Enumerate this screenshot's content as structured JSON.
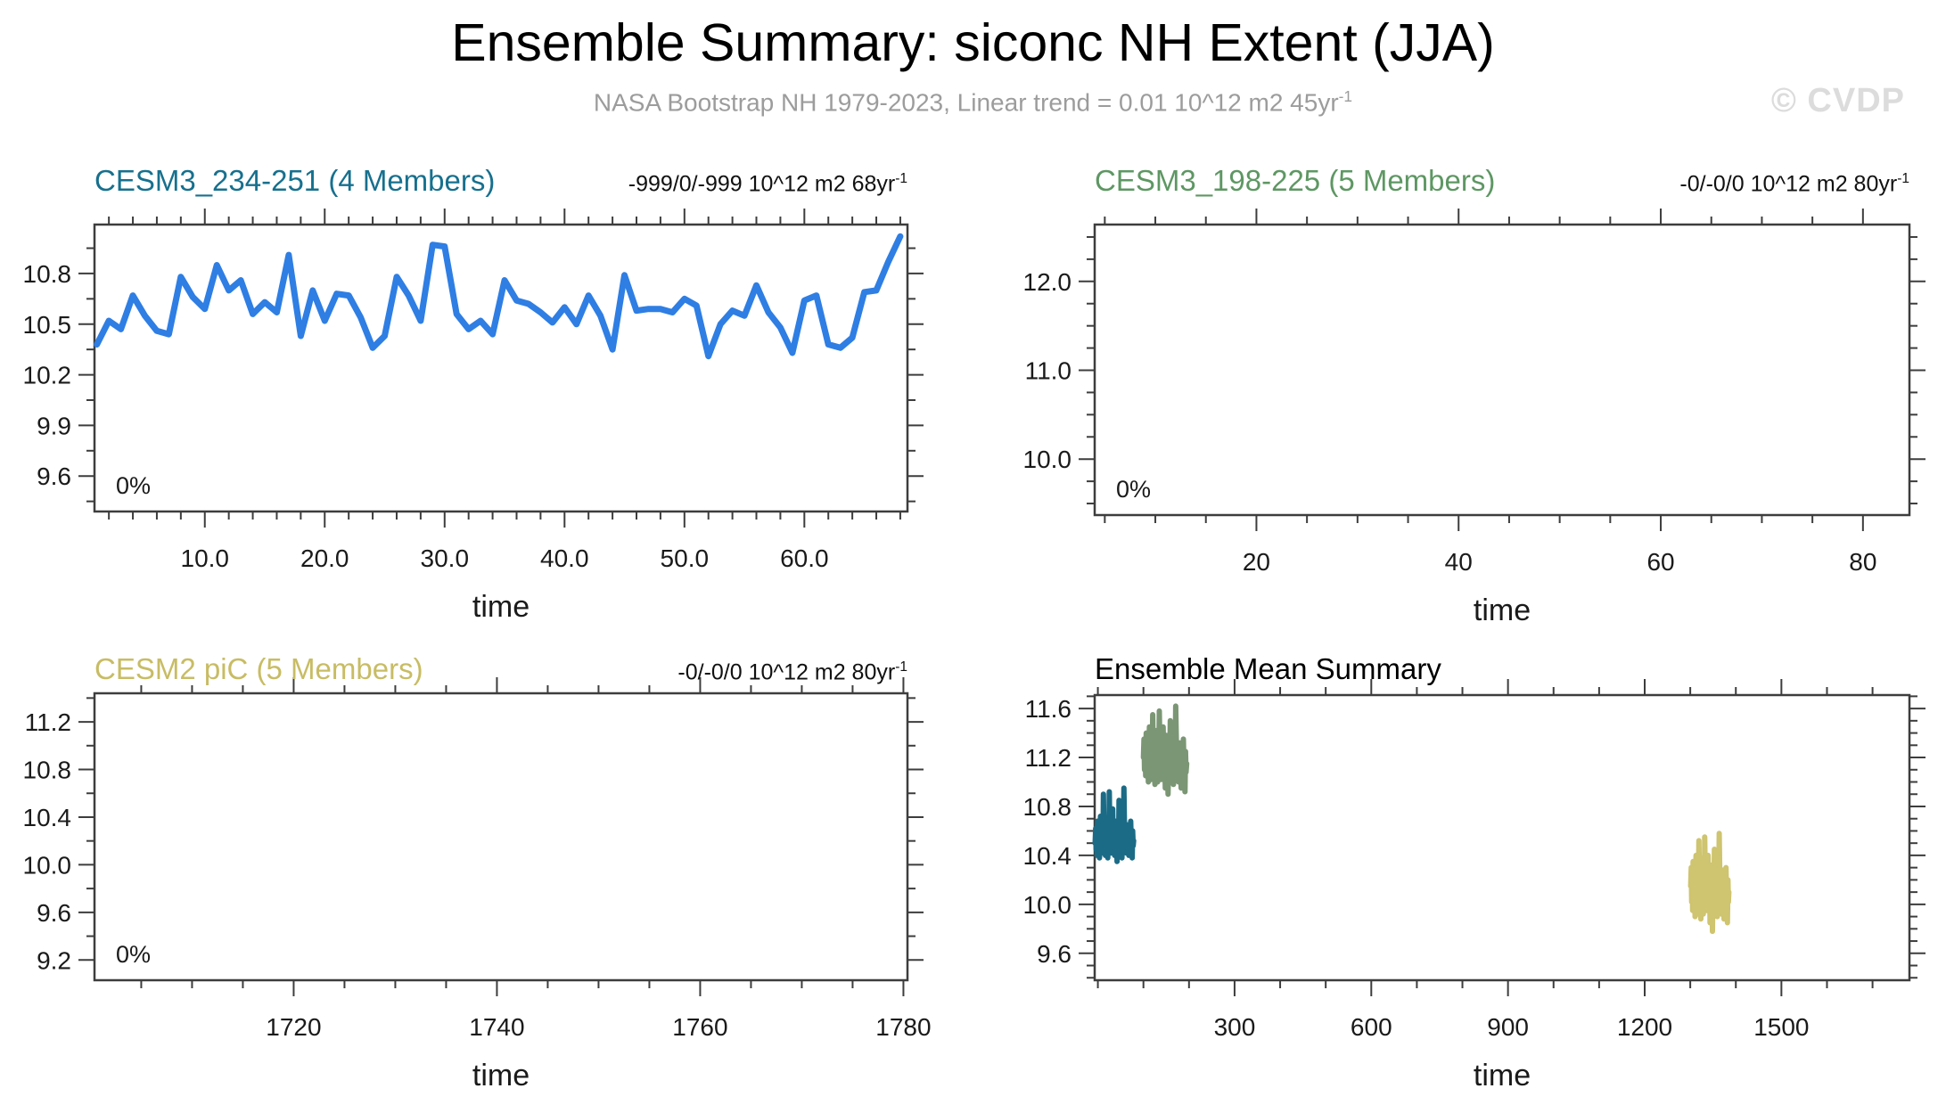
{
  "header": {
    "title": "Ensemble Summary: siconc NH Extent (JJA)",
    "subtitle": "NASA Bootstrap NH 1979-2023, Linear trend = 0.01 10^12 m2 45yr",
    "subtitle_sup": "-1",
    "watermark": "© CVDP"
  },
  "colors": {
    "frame": "#3d3d3d",
    "tick_text": "#1a1a1a",
    "subtitle_gray": "#9c9c9c",
    "watermark_gray": "#dcdcdc",
    "blue_line": "#2e7ee4",
    "teal": "#17708e",
    "green": "#5e9763",
    "olive": "#c8bc64"
  },
  "chart_data": [
    {
      "id": "cesm3-234-251",
      "type": "line",
      "title": "CESM3_234-251 (4 Members)",
      "title_color": "#17708e",
      "trend_label": "-999/0/-999 10^12 m2 68yr",
      "trend_sup": "-1",
      "corner_label": "0%",
      "xlabel": "time",
      "xlim": [
        0.8,
        68.6
      ],
      "ylim": [
        9.39,
        11.09
      ],
      "xticks": {
        "values": [
          10,
          20,
          30,
          40,
          50,
          60
        ],
        "labels": [
          "10.0",
          "20.0",
          "30.0",
          "40.0",
          "50.0",
          "60.0"
        ],
        "minor_step": 2
      },
      "yticks": {
        "values": [
          9.6,
          9.9,
          10.2,
          10.5,
          10.8
        ],
        "labels": [
          "9.6",
          "9.9",
          "10.2",
          "10.5",
          "10.8"
        ],
        "minor_step": 0.15
      },
      "series": [
        {
          "name": "ensemble-member-mean",
          "color": "#2e7ee4",
          "stroke_width": 7,
          "x0": 1,
          "dx": 1,
          "y": [
            10.38,
            10.52,
            10.47,
            10.67,
            10.55,
            10.46,
            10.44,
            10.78,
            10.66,
            10.59,
            10.85,
            10.7,
            10.76,
            10.56,
            10.63,
            10.57,
            10.91,
            10.43,
            10.7,
            10.52,
            10.68,
            10.67,
            10.54,
            10.36,
            10.43,
            10.78,
            10.67,
            10.52,
            10.97,
            10.96,
            10.56,
            10.47,
            10.52,
            10.44,
            10.76,
            10.64,
            10.62,
            10.57,
            10.51,
            10.6,
            10.5,
            10.67,
            10.55,
            10.35,
            10.79,
            10.58,
            10.59,
            10.59,
            10.57,
            10.65,
            10.61,
            10.31,
            10.5,
            10.58,
            10.55,
            10.73,
            10.57,
            10.48,
            10.33,
            10.64,
            10.67,
            10.38,
            10.36,
            10.42,
            10.69,
            10.7,
            10.87,
            11.02
          ]
        }
      ]
    },
    {
      "id": "cesm3-198-225",
      "type": "line",
      "title": "CESM3_198-225 (5 Members)",
      "title_color": "#5e9763",
      "trend_label": "-0/-0/0 10^12 m2 80yr",
      "trend_sup": "-1",
      "corner_label": "0%",
      "xlabel": "time",
      "xlim": [
        4,
        84.6
      ],
      "ylim": [
        9.37,
        12.64
      ],
      "xticks": {
        "values": [
          20,
          40,
          60,
          80
        ],
        "labels": [
          "20",
          "40",
          "60",
          "80"
        ],
        "minor_step": 5
      },
      "yticks": {
        "values": [
          10,
          11,
          12
        ],
        "labels": [
          "10.0",
          "11.0",
          "12.0"
        ],
        "minor_step": 0.25
      },
      "series": []
    },
    {
      "id": "cesm2-pic",
      "type": "line",
      "title": "CESM2 piC (5 Members)",
      "title_color": "#c8bc64",
      "trend_label": "-0/-0/0 10^12 m2 80yr",
      "trend_sup": "-1",
      "corner_label": "0%",
      "xlabel": "time",
      "xlim": [
        1700.4,
        1780.4
      ],
      "ylim": [
        9.03,
        11.44
      ],
      "xticks": {
        "values": [
          1720,
          1740,
          1760,
          1780
        ],
        "labels": [
          "1720",
          "1740",
          "1760",
          "1780"
        ],
        "minor_step": 5
      },
      "yticks": {
        "values": [
          9.2,
          9.6,
          10.0,
          10.4,
          10.8,
          11.2
        ],
        "labels": [
          "9.2",
          "9.6",
          "10.0",
          "10.4",
          "10.8",
          "11.2"
        ],
        "minor_step": 0.2
      },
      "series": []
    },
    {
      "id": "ensemble-mean-summary",
      "type": "line",
      "title": "Ensemble Mean Summary",
      "title_color": "#000000",
      "xlabel": "time",
      "xlim": [
        -7,
        1781
      ],
      "ylim": [
        9.38,
        11.71
      ],
      "xticks": {
        "values": [
          300,
          600,
          900,
          1200,
          1500
        ],
        "labels": [
          "300",
          "600",
          "900",
          "1200",
          "1500"
        ],
        "minor_step": 100
      },
      "yticks": {
        "values": [
          9.6,
          10.0,
          10.4,
          10.8,
          11.2,
          11.6
        ],
        "labels": [
          "9.6",
          "10.0",
          "10.4",
          "10.8",
          "11.2",
          "11.6"
        ],
        "minor_step": 0.1
      },
      "series": [
        {
          "name": "cesm3-234-251-mean",
          "color": "#1b6b86",
          "stroke_width": 6,
          "x0": -6,
          "dx": 1.07,
          "y": [
            10.5,
            10.62,
            10.45,
            10.55,
            10.4,
            10.68,
            10.52,
            10.45,
            10.6,
            10.38,
            10.55,
            10.72,
            10.48,
            10.58,
            10.42,
            10.65,
            10.5,
            10.9,
            10.6,
            10.45,
            10.55,
            10.4,
            10.62,
            10.48,
            10.7,
            10.52,
            10.38,
            10.58,
            10.45,
            10.92,
            10.65,
            10.48,
            10.55,
            10.42,
            10.6,
            10.5,
            10.78,
            10.55,
            10.45,
            10.62,
            10.4,
            10.55,
            10.68,
            10.48,
            10.58,
            10.35,
            10.52,
            10.6,
            10.45,
            10.85,
            10.55,
            10.42,
            10.65,
            10.5,
            10.58,
            10.38,
            10.62,
            10.48,
            10.55,
            10.95,
            10.7,
            10.5,
            10.45,
            10.6,
            10.42,
            10.55,
            10.65,
            10.48,
            10.58,
            10.4,
            10.52,
            10.62,
            10.45,
            10.68,
            10.5,
            10.55,
            10.38,
            10.6,
            10.48,
            10.52
          ]
        },
        {
          "name": "cesm3-198-225-mean",
          "color": "#7b9674",
          "stroke_width": 6,
          "x0": 100,
          "dx": 1.2,
          "y": [
            11.2,
            11.35,
            11.1,
            11.28,
            11.05,
            11.4,
            11.18,
            11.08,
            11.3,
            11.0,
            11.22,
            11.45,
            11.12,
            11.28,
            11.02,
            11.35,
            11.15,
            11.55,
            11.25,
            11.05,
            11.2,
            10.98,
            11.3,
            11.12,
            11.42,
            11.18,
            11.0,
            11.25,
            11.08,
            11.58,
            11.3,
            11.1,
            11.22,
            11.02,
            11.28,
            11.15,
            11.45,
            11.2,
            11.05,
            11.32,
            10.95,
            11.18,
            11.38,
            11.1,
            11.25,
            10.9,
            11.15,
            11.28,
            11.05,
            11.5,
            11.2,
            11.02,
            11.32,
            11.12,
            11.25,
            10.98,
            11.3,
            11.1,
            11.2,
            11.62,
            11.38,
            11.15,
            11.08,
            11.28,
            11.0,
            11.18,
            11.32,
            11.1,
            11.22,
            10.95,
            11.15,
            11.28,
            11.05,
            11.35,
            11.12,
            11.2,
            10.92,
            11.25,
            11.08,
            11.15
          ]
        },
        {
          "name": "cesm2-pic-mean",
          "color": "#cfc46f",
          "stroke_width": 6,
          "x0": 1301,
          "dx": 1.06,
          "y": [
            10.15,
            10.3,
            10.02,
            10.22,
            9.95,
            10.35,
            10.12,
            10.0,
            10.25,
            9.9,
            10.18,
            10.4,
            10.05,
            10.22,
            9.92,
            10.3,
            10.1,
            10.52,
            10.2,
            9.98,
            10.15,
            9.88,
            10.25,
            10.05,
            10.38,
            10.12,
            9.92,
            10.2,
            10.0,
            10.55,
            10.25,
            10.02,
            10.18,
            9.95,
            10.22,
            10.08,
            10.4,
            10.15,
            9.98,
            10.28,
            9.85,
            10.12,
            10.32,
            10.02,
            10.2,
            9.78,
            10.08,
            10.22,
            9.98,
            10.45,
            10.15,
            9.95,
            10.28,
            10.05,
            10.2,
            9.9,
            10.25,
            10.02,
            10.15,
            10.58,
            10.32,
            10.08,
            10.0,
            10.22,
            9.92,
            10.12,
            10.28,
            10.05,
            10.18,
            9.88,
            10.1,
            10.22,
            9.98,
            10.3,
            10.08,
            10.15,
            9.85,
            10.2,
            10.02,
            10.1
          ]
        }
      ]
    }
  ]
}
